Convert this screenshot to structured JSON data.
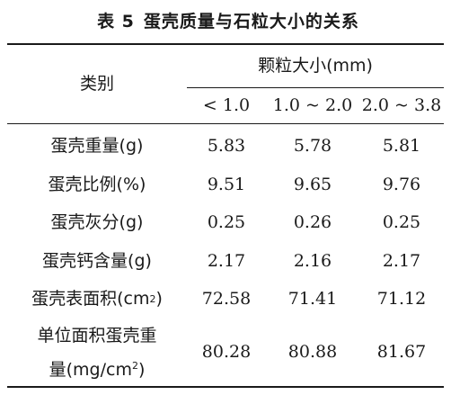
{
  "table": {
    "title_prefix": "表 5",
    "title_text": "蛋壳质量与石粒大小的关系",
    "row_header": "类别",
    "group_header": "颗粒大小(mm)",
    "columns": [
      "< 1.0",
      "1.0 ~ 2.0",
      "2.0 ~ 3.8"
    ],
    "rows": [
      {
        "label": "蛋壳重量(g)",
        "values": [
          "5.83",
          "5.78",
          "5.81"
        ]
      },
      {
        "label": "蛋壳比例(%)",
        "values": [
          "9.51",
          "9.65",
          "9.76"
        ]
      },
      {
        "label": "蛋壳灰分(g)",
        "values": [
          "0.25",
          "0.26",
          "0.25"
        ]
      },
      {
        "label": "蛋壳钙含量(g)",
        "values": [
          "2.17",
          "2.16",
          "2.17"
        ]
      },
      {
        "label_main": "蛋壳表面积(cm",
        "label_sup": "2",
        "label_end": ")",
        "values": [
          "72.58",
          "71.41",
          "71.12"
        ]
      },
      {
        "label_line1": "单位面积蛋壳重",
        "label_line2_main": "量(mg/cm",
        "label_line2_sup": "2",
        "label_line2_end": ")",
        "values": [
          "80.28",
          "80.88",
          "81.67"
        ]
      }
    ]
  }
}
